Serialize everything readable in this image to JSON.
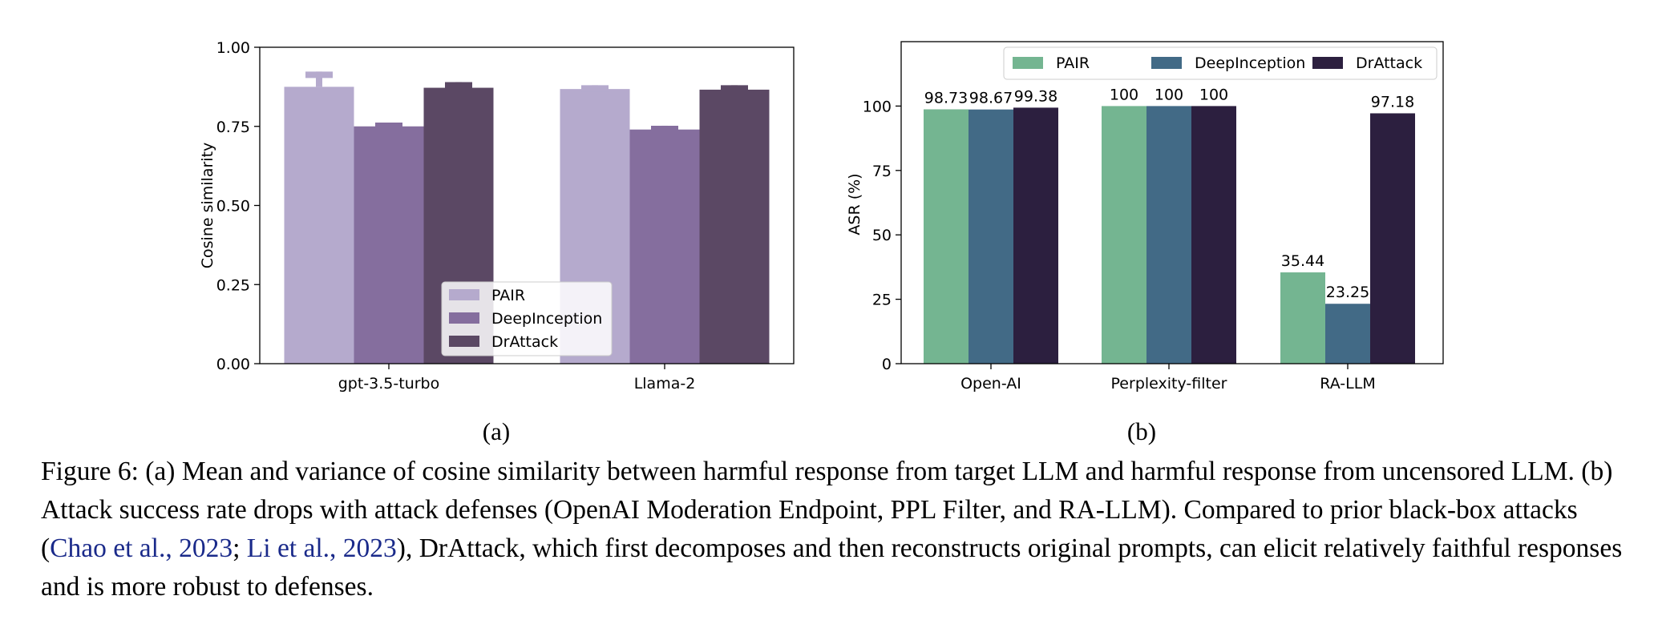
{
  "colors": {
    "a_series": [
      "#b5aacd",
      "#856e9e",
      "#5b4864"
    ],
    "b_series": [
      "#74b591",
      "#426a86",
      "#2c1f3f"
    ]
  },
  "chart_data": [
    {
      "type": "bar",
      "panel_label": "(a)",
      "categories": [
        "gpt-3.5-turbo",
        "Llama-2"
      ],
      "series": [
        {
          "name": "PAIR",
          "values": [
            0.875,
            0.868
          ],
          "error": [
            0.048,
            0.012
          ]
        },
        {
          "name": "DeepInception",
          "values": [
            0.75,
            0.74
          ],
          "error": [
            0.012,
            0.012
          ]
        },
        {
          "name": "DrAttack",
          "values": [
            0.872,
            0.866
          ],
          "error": [
            0.018,
            0.014
          ]
        }
      ],
      "ylabel": "Cosine similarity",
      "xlabel": "",
      "ylim": [
        0,
        1.0
      ],
      "yticks": [
        "0.00",
        "0.25",
        "0.50",
        "0.75",
        "1.00"
      ],
      "legend_position": "lower-center",
      "grid": false
    },
    {
      "type": "bar",
      "panel_label": "(b)",
      "categories": [
        "Open-AI",
        "Perplexity-filter",
        "RA-LLM"
      ],
      "series": [
        {
          "name": "PAIR",
          "values": [
            98.73,
            100,
            35.44
          ],
          "labels": [
            "98.73",
            "100",
            "35.44"
          ]
        },
        {
          "name": "DeepInception",
          "values": [
            98.67,
            100,
            23.25
          ],
          "labels": [
            "98.67",
            "100",
            "23.25"
          ]
        },
        {
          "name": "DrAttack",
          "values": [
            99.38,
            100,
            97.18
          ],
          "labels": [
            "99.38",
            "100",
            "97.18"
          ]
        }
      ],
      "ylabel": "ASR (%)",
      "xlabel": "",
      "ylim": [
        0,
        125
      ],
      "yticks": [
        "0",
        "25",
        "50",
        "75",
        "100"
      ],
      "legend_position": "top",
      "grid": false
    }
  ],
  "caption": {
    "part1": "Figure 6: (a) Mean and variance of cosine similarity between harmful response from target LLM and harmful response from uncensored LLM. (b) Attack success rate drops with attack defenses (OpenAI Moderation Endpoint, PPL Filter, and RA-LLM). Compared to prior black-box attacks (",
    "cite1": "Chao et al., 2023",
    "sep": "; ",
    "cite2": "Li et al., 2023",
    "part2": "), DrAttack, which first decomposes and then reconstructs original prompts, can elicit relatively faithful responses and is more robust to defenses."
  }
}
